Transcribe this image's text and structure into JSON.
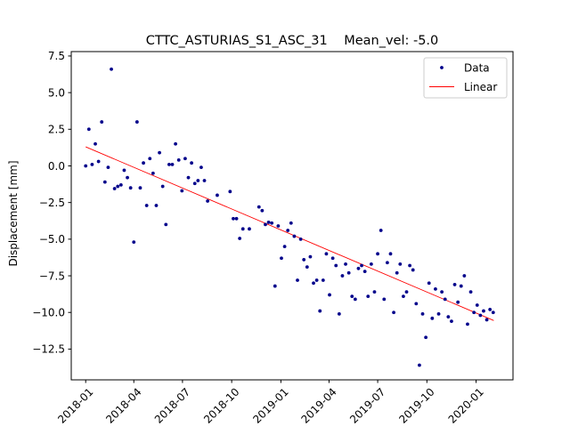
{
  "chart_data": {
    "type": "scatter",
    "title": "CTTC_ASTURIAS_S1_ASC_31    Mean_vel: -5.0",
    "xlabel": "",
    "ylabel": "Displacement [mm]",
    "xlim": [
      "2017-12-05",
      "2020-03-10"
    ],
    "ylim": [
      -14.6,
      7.8
    ],
    "x_ticks": [
      "2018-01",
      "2018-04",
      "2018-07",
      "2018-10",
      "2019-01",
      "2019-04",
      "2019-07",
      "2019-10",
      "2020-01"
    ],
    "y_ticks": [
      7.5,
      5.0,
      2.5,
      0.0,
      -2.5,
      -5.0,
      -7.5,
      -10.0,
      -12.5
    ],
    "y_tick_labels": [
      "7.5",
      "5.0",
      "2.5",
      "0.0",
      "−2.5",
      "−5.0",
      "−7.5",
      "−10.0",
      "−12.5"
    ],
    "grid": false,
    "legend_position": "top-right",
    "colors": {
      "data": "#00008b",
      "linear": "#ff0000",
      "axes": "#000000"
    },
    "series": [
      {
        "name": "Data",
        "marker": "dot",
        "x": [
          "2018-01-01",
          "2018-01-07",
          "2018-01-13",
          "2018-01-19",
          "2018-01-25",
          "2018-01-31",
          "2018-02-06",
          "2018-02-12",
          "2018-02-18",
          "2018-02-24",
          "2018-03-02",
          "2018-03-08",
          "2018-03-14",
          "2018-03-20",
          "2018-03-26",
          "2018-04-01",
          "2018-04-07",
          "2018-04-13",
          "2018-04-19",
          "2018-04-25",
          "2018-05-01",
          "2018-05-07",
          "2018-05-13",
          "2018-05-19",
          "2018-05-25",
          "2018-05-31",
          "2018-06-06",
          "2018-06-12",
          "2018-06-18",
          "2018-06-24",
          "2018-06-30",
          "2018-07-06",
          "2018-07-12",
          "2018-07-18",
          "2018-07-24",
          "2018-07-30",
          "2018-08-05",
          "2018-08-11",
          "2018-08-17",
          "2018-09-04",
          "2018-09-28",
          "2018-10-04",
          "2018-10-10",
          "2018-10-16",
          "2018-10-22",
          "2018-11-03",
          "2018-11-21",
          "2018-11-27",
          "2018-12-03",
          "2018-12-09",
          "2018-12-15",
          "2018-12-21",
          "2018-12-27",
          "2019-01-02",
          "2019-01-08",
          "2019-01-14",
          "2019-01-20",
          "2019-01-26",
          "2019-02-01",
          "2019-02-07",
          "2019-02-13",
          "2019-02-19",
          "2019-02-25",
          "2019-03-03",
          "2019-03-09",
          "2019-03-15",
          "2019-03-21",
          "2019-03-27",
          "2019-04-02",
          "2019-04-08",
          "2019-04-14",
          "2019-04-20",
          "2019-04-26",
          "2019-05-02",
          "2019-05-08",
          "2019-05-14",
          "2019-05-20",
          "2019-05-26",
          "2019-06-01",
          "2019-06-07",
          "2019-06-13",
          "2019-06-19",
          "2019-06-25",
          "2019-07-01",
          "2019-07-07",
          "2019-07-13",
          "2019-07-19",
          "2019-07-25",
          "2019-07-31",
          "2019-08-06",
          "2019-08-12",
          "2019-08-18",
          "2019-08-24",
          "2019-08-30",
          "2019-09-05",
          "2019-09-11",
          "2019-09-17",
          "2019-09-23",
          "2019-09-29",
          "2019-10-05",
          "2019-10-11",
          "2019-10-17",
          "2019-10-23",
          "2019-10-29",
          "2019-11-04",
          "2019-11-10",
          "2019-11-16",
          "2019-11-22",
          "2019-11-28",
          "2019-12-04",
          "2019-12-10",
          "2019-12-16",
          "2019-12-22",
          "2019-12-28",
          "2020-01-03",
          "2020-01-09",
          "2020-01-15",
          "2020-01-21",
          "2020-01-27",
          "2020-02-02"
        ],
        "y": [
          0.0,
          2.5,
          0.1,
          1.5,
          0.3,
          3.0,
          -1.1,
          -0.1,
          6.6,
          -1.55,
          -1.4,
          -1.3,
          -0.3,
          -0.8,
          -1.5,
          -5.2,
          3.0,
          -1.5,
          0.2,
          -2.7,
          0.5,
          -0.5,
          -2.7,
          0.9,
          -1.4,
          -4.0,
          0.1,
          0.1,
          1.5,
          0.4,
          -1.7,
          0.5,
          -0.8,
          0.2,
          -1.2,
          -1.0,
          -0.1,
          -1.0,
          -2.4,
          -2.0,
          -1.75,
          -3.6,
          -3.6,
          -4.95,
          -4.3,
          -4.3,
          -2.8,
          -3.05,
          -4.0,
          -3.85,
          -3.9,
          -8.2,
          -4.1,
          -6.3,
          -5.5,
          -4.4,
          -3.9,
          -4.8,
          -7.8,
          -5.0,
          -6.4,
          -6.9,
          -6.2,
          -8.0,
          -7.8,
          -9.9,
          -7.8,
          -6.0,
          -8.8,
          -6.3,
          -6.8,
          -10.1,
          -7.5,
          -6.7,
          -7.3,
          -8.9,
          -9.1,
          -7.0,
          -6.8,
          -7.2,
          -8.9,
          -6.7,
          -8.6,
          -6.0,
          -4.4,
          -9.1,
          -6.6,
          -6.0,
          -10.0,
          -7.3,
          -6.7,
          -8.9,
          -8.6,
          -6.8,
          -7.1,
          -9.4,
          -13.6,
          -10.1,
          -11.7,
          -8.0,
          -10.4,
          -8.4,
          -10.1,
          -8.6,
          -9.1,
          -10.3,
          -10.6,
          -8.1,
          -9.3,
          -8.2,
          -7.5,
          -10.8,
          -8.6,
          -10.0,
          -9.5,
          -10.2,
          -9.9,
          -10.5,
          -9.8,
          -10.0
        ],
        "x_note": ""
      },
      {
        "name": "Linear",
        "marker": "line",
        "x": [
          "2018-01-01",
          "2020-02-03"
        ],
        "y": [
          1.3,
          -10.55
        ]
      }
    ]
  }
}
